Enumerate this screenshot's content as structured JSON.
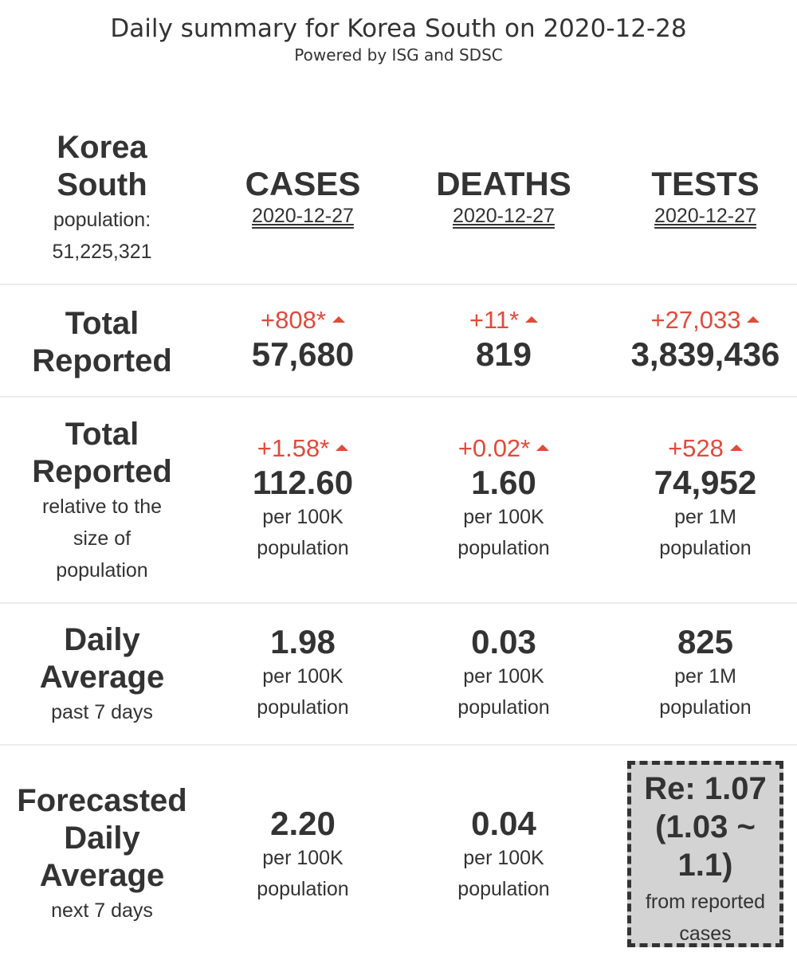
{
  "header": {
    "title": "Daily summary for Korea South on 2020-12-28",
    "subtitle": "Powered by ISG and SDSC"
  },
  "region": {
    "name_line1": "Korea",
    "name_line2": "South",
    "population_label": "population:",
    "population_value": "51,225,321"
  },
  "columns": [
    {
      "label": "CASES",
      "date": "2020-12-27"
    },
    {
      "label": "DEATHS",
      "date": "2020-12-27"
    },
    {
      "label": "TESTS",
      "date": "2020-12-27"
    }
  ],
  "total_reported": {
    "label_line1": "Total",
    "label_line2": "Reported",
    "values": [
      {
        "change": "+808*",
        "value": "57,680"
      },
      {
        "change": "+11*",
        "value": "819"
      },
      {
        "change": "+27,033",
        "value": "3,839,436"
      }
    ]
  },
  "relative": {
    "label_line1": "Total",
    "label_line2": "Reported",
    "sub_line1": "relative to the",
    "sub_line2": "size of",
    "sub_line3": "population",
    "values": [
      {
        "change": "+1.58*",
        "value": "112.60",
        "unit1": "per 100K",
        "unit2": "population"
      },
      {
        "change": "+0.02*",
        "value": "1.60",
        "unit1": "per 100K",
        "unit2": "population"
      },
      {
        "change": "+528",
        "value": "74,952",
        "unit1": "per 1M",
        "unit2": "population"
      }
    ]
  },
  "daily_average": {
    "label_line1": "Daily",
    "label_line2": "Average",
    "sub": "past 7 days",
    "values": [
      {
        "value": "1.98",
        "unit1": "per 100K",
        "unit2": "population"
      },
      {
        "value": "0.03",
        "unit1": "per 100K",
        "unit2": "population"
      },
      {
        "value": "825",
        "unit1": "per 1M",
        "unit2": "population"
      }
    ]
  },
  "forecast": {
    "label_line1": "Forecasted",
    "label_line2": "Daily",
    "label_line3": "Average",
    "sub": "next 7 days",
    "values": [
      {
        "value": "2.20",
        "unit1": "per 100K",
        "unit2": "population"
      },
      {
        "value": "0.04",
        "unit1": "per 100K",
        "unit2": "population"
      }
    ],
    "re_line1": "Re: 1.07",
    "re_line2": "(1.03 ~",
    "re_line3": "1.1)",
    "re_sub1": "from reported",
    "re_sub2": "cases"
  },
  "colors": {
    "increase": "#e24a3b",
    "text": "#333333",
    "re_box_bg": "#d3d3d3"
  }
}
